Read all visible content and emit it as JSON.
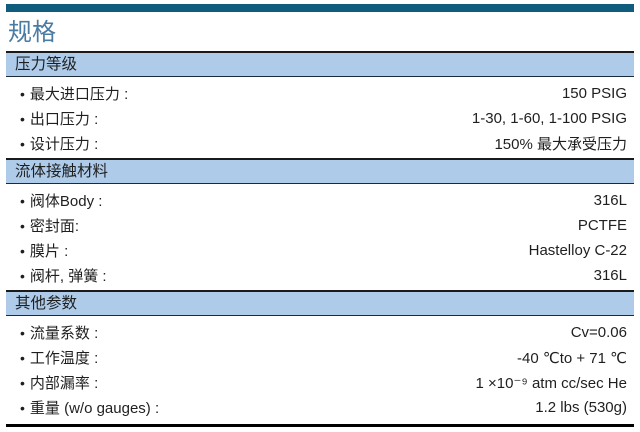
{
  "page": {
    "title": "规格"
  },
  "icons": {
    "bullet": "•"
  },
  "colors": {
    "top_bar": "#0f5c7d",
    "title_text": "#4a7ba3",
    "band_bg": "#aecbe9",
    "band_border_top": "#1a1a1a",
    "band_border_bottom": "#1c2b39",
    "bottom_rule": "#000000",
    "text": "#1f1f1f"
  },
  "sections": [
    {
      "header": "压力等级",
      "rows": [
        {
          "label": "最大进口压力 :",
          "value": "150 PSIG"
        },
        {
          "label": "出口压力 :",
          "value": "1-30, 1-60, 1-100 PSIG"
        },
        {
          "label": "设计压力 :",
          "value": "150% 最大承受压力"
        }
      ]
    },
    {
      "header": "流体接触材料",
      "rows": [
        {
          "label": "阀体Body :",
          "value": "316L"
        },
        {
          "label": "密封面:",
          "value": "PCTFE"
        },
        {
          "label": "膜片 :",
          "value": "Hastelloy C-22"
        },
        {
          "label": "阀杆, 弹簧 :",
          "value": "316L"
        }
      ]
    },
    {
      "header": "其他参数",
      "rows": [
        {
          "label": "流量系数 :",
          "value": "Cv=0.06"
        },
        {
          "label": "工作温度 :",
          "value": "-40 ℃to + 71 ℃"
        },
        {
          "label": "内部漏率 :",
          "value": "1 ×10⁻⁹ atm cc/sec He"
        },
        {
          "label": "重量 (w/o gauges) :",
          "value": "1.2 lbs (530g)"
        }
      ]
    }
  ]
}
